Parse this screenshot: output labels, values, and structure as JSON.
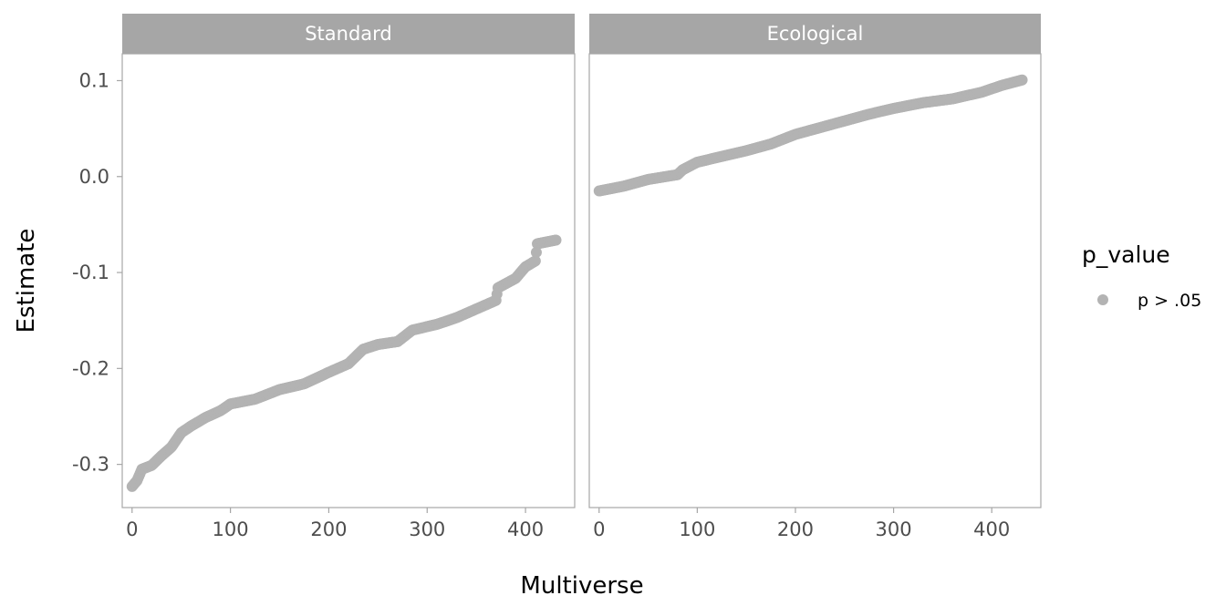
{
  "chart_data": {
    "type": "scatter",
    "xlabel": "Multiverse",
    "ylabel": "Estimate",
    "xlim": [
      -10,
      450
    ],
    "ylim": [
      -0.345,
      0.128
    ],
    "x_ticks": [
      0,
      100,
      200,
      300,
      400
    ],
    "x_tick_labels": [
      "0",
      "100",
      "200",
      "300",
      "400"
    ],
    "y_ticks": [
      0.1,
      0.0,
      -0.1,
      -0.2,
      -0.3
    ],
    "y_tick_labels": [
      "0.1",
      "0.0",
      "-0.1",
      "-0.2",
      "-0.3"
    ],
    "grid": false,
    "legend": {
      "title": "p_value",
      "position": "right",
      "entries": [
        {
          "label": "p > .05",
          "color": "#b3b3b3"
        }
      ]
    },
    "colors": {
      "point": "#b3b3b3",
      "strip": "#a6a6a6",
      "strip_text": "#ffffff",
      "panel_border": "#a6a6a6",
      "axis_text": "#4d4d4d"
    },
    "n_points": 432,
    "panels": [
      {
        "strip_label": "Standard",
        "anchors": [
          [
            0,
            -0.323
          ],
          [
            5,
            -0.317
          ],
          [
            10,
            -0.305
          ],
          [
            20,
            -0.301
          ],
          [
            30,
            -0.291
          ],
          [
            40,
            -0.282
          ],
          [
            50,
            -0.267
          ],
          [
            60,
            -0.26
          ],
          [
            75,
            -0.251
          ],
          [
            90,
            -0.244
          ],
          [
            100,
            -0.237
          ],
          [
            125,
            -0.232
          ],
          [
            140,
            -0.226
          ],
          [
            150,
            -0.222
          ],
          [
            175,
            -0.216
          ],
          [
            200,
            -0.204
          ],
          [
            220,
            -0.195
          ],
          [
            235,
            -0.18
          ],
          [
            250,
            -0.175
          ],
          [
            270,
            -0.172
          ],
          [
            285,
            -0.16
          ],
          [
            310,
            -0.154
          ],
          [
            330,
            -0.147
          ],
          [
            350,
            -0.138
          ],
          [
            370,
            -0.129
          ],
          [
            372,
            -0.116
          ],
          [
            390,
            -0.106
          ],
          [
            400,
            -0.094
          ],
          [
            410,
            -0.088
          ],
          [
            412,
            -0.07
          ],
          [
            432,
            -0.066
          ]
        ]
      },
      {
        "strip_label": "Ecological",
        "anchors": [
          [
            0,
            -0.015
          ],
          [
            25,
            -0.01
          ],
          [
            50,
            -0.003
          ],
          [
            80,
            0.002
          ],
          [
            85,
            0.007
          ],
          [
            100,
            0.015
          ],
          [
            125,
            0.021
          ],
          [
            150,
            0.027
          ],
          [
            175,
            0.034
          ],
          [
            200,
            0.044
          ],
          [
            225,
            0.051
          ],
          [
            250,
            0.058
          ],
          [
            275,
            0.065
          ],
          [
            300,
            0.071
          ],
          [
            330,
            0.077
          ],
          [
            360,
            0.081
          ],
          [
            390,
            0.088
          ],
          [
            410,
            0.095
          ],
          [
            432,
            0.101
          ]
        ]
      }
    ]
  }
}
